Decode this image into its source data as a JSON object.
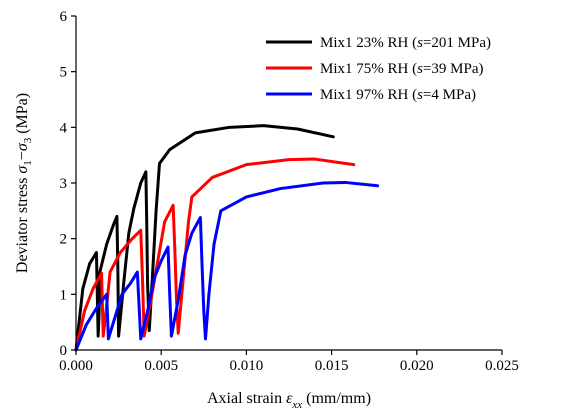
{
  "chart_data": {
    "type": "line",
    "title": "",
    "xlabel": {
      "prefix": "Axial strain ",
      "symbol": "ε",
      "subscript": "xx",
      "unit": " (mm/mm)"
    },
    "ylabel": {
      "prefix": "Deviator stress ",
      "symbol1": "σ",
      "sub1": "1",
      "minus": "−",
      "symbol2": "σ",
      "sub2": "3",
      "unit": " (MPa)"
    },
    "xlim": [
      0,
      0.025
    ],
    "ylim": [
      0,
      6
    ],
    "xticks": [
      0,
      0.005,
      0.01,
      0.015,
      0.02,
      0.025
    ],
    "xtick_labels": [
      "0.000",
      "0.005",
      "0.010",
      "0.015",
      "0.020",
      "0.025"
    ],
    "yticks": [
      0,
      1,
      2,
      3,
      4,
      5,
      6
    ],
    "ytick_labels": [
      "0",
      "1",
      "2",
      "3",
      "4",
      "5",
      "6"
    ],
    "grid": false,
    "legend_position": "top-right",
    "series": [
      {
        "name": "Mix1  23% RH (s=201 MPa)",
        "legend": {
          "main": "Mix1  23% RH (",
          "s": "s",
          "rest": "=201 MPa)"
        },
        "color": "#000000",
        "points": [
          [
            0,
            0
          ],
          [
            0.0004,
            1.1
          ],
          [
            0.0008,
            1.55
          ],
          [
            0.0012,
            1.75
          ],
          [
            0.00125,
            1.0
          ],
          [
            0.0013,
            0.25
          ],
          [
            0.00135,
            0.6
          ],
          [
            0.0014,
            1.4
          ],
          [
            0.0018,
            1.9
          ],
          [
            0.0022,
            2.25
          ],
          [
            0.0024,
            2.4
          ],
          [
            0.00245,
            1.6
          ],
          [
            0.0025,
            0.25
          ],
          [
            0.0028,
            1.2
          ],
          [
            0.0031,
            2.1
          ],
          [
            0.0034,
            2.55
          ],
          [
            0.0038,
            3.0
          ],
          [
            0.0041,
            3.2
          ],
          [
            0.00415,
            2.3
          ],
          [
            0.0042,
            1.2
          ],
          [
            0.0043,
            0.35
          ],
          [
            0.0045,
            1.4
          ],
          [
            0.0047,
            2.5
          ],
          [
            0.0049,
            3.35
          ],
          [
            0.0055,
            3.6
          ],
          [
            0.007,
            3.9
          ],
          [
            0.009,
            4.0
          ],
          [
            0.011,
            4.03
          ],
          [
            0.013,
            3.97
          ],
          [
            0.0151,
            3.83
          ]
        ]
      },
      {
        "name": "Mix1  75% RH (s=39 MPa)",
        "legend": {
          "main": "Mix1  75% RH (",
          "s": "s",
          "rest": "=39 MPa)"
        },
        "color": "#ff0000",
        "points": [
          [
            0,
            0
          ],
          [
            0.0005,
            0.7
          ],
          [
            0.001,
            1.1
          ],
          [
            0.0015,
            1.38
          ],
          [
            0.00155,
            0.8
          ],
          [
            0.0016,
            0.25
          ],
          [
            0.0018,
            0.8
          ],
          [
            0.002,
            1.4
          ],
          [
            0.0026,
            1.75
          ],
          [
            0.0033,
            2.0
          ],
          [
            0.0038,
            2.15
          ],
          [
            0.0039,
            1.3
          ],
          [
            0.004,
            0.25
          ],
          [
            0.0044,
            0.9
          ],
          [
            0.0048,
            1.6
          ],
          [
            0.0052,
            2.3
          ],
          [
            0.0057,
            2.6
          ],
          [
            0.0058,
            1.8
          ],
          [
            0.0059,
            0.9
          ],
          [
            0.006,
            0.3
          ],
          [
            0.0063,
            1.3
          ],
          [
            0.0066,
            2.3
          ],
          [
            0.0068,
            2.75
          ],
          [
            0.008,
            3.1
          ],
          [
            0.01,
            3.33
          ],
          [
            0.0125,
            3.42
          ],
          [
            0.014,
            3.43
          ],
          [
            0.0163,
            3.33
          ]
        ]
      },
      {
        "name": "Mix1  97% RH (s=4 MPa)",
        "legend": {
          "main": "Mix1  97% RH (",
          "s": "s",
          "rest": "=4 MPa)"
        },
        "color": "#0000ff",
        "points": [
          [
            0,
            0
          ],
          [
            0.0006,
            0.45
          ],
          [
            0.0012,
            0.75
          ],
          [
            0.0018,
            1.0
          ],
          [
            0.00185,
            0.6
          ],
          [
            0.0019,
            0.2
          ],
          [
            0.0023,
            0.6
          ],
          [
            0.0027,
            1.0
          ],
          [
            0.0032,
            1.2
          ],
          [
            0.0036,
            1.4
          ],
          [
            0.0037,
            0.8
          ],
          [
            0.0038,
            0.2
          ],
          [
            0.0042,
            0.7
          ],
          [
            0.0046,
            1.3
          ],
          [
            0.005,
            1.6
          ],
          [
            0.0054,
            1.85
          ],
          [
            0.0055,
            1.0
          ],
          [
            0.0056,
            0.25
          ],
          [
            0.006,
            0.9
          ],
          [
            0.0064,
            1.7
          ],
          [
            0.0068,
            2.1
          ],
          [
            0.0073,
            2.38
          ],
          [
            0.0074,
            1.5
          ],
          [
            0.0075,
            0.7
          ],
          [
            0.0076,
            0.2
          ],
          [
            0.0078,
            1.0
          ],
          [
            0.0081,
            1.9
          ],
          [
            0.0085,
            2.5
          ],
          [
            0.01,
            2.75
          ],
          [
            0.012,
            2.9
          ],
          [
            0.0145,
            3.0
          ],
          [
            0.0158,
            3.01
          ],
          [
            0.0177,
            2.95
          ]
        ]
      }
    ]
  }
}
